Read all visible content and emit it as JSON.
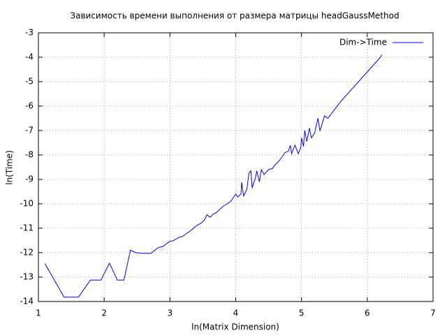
{
  "chart_data": {
    "type": "line",
    "title": "Зависимость времени выполнения от размера матрицы headGaussMethod",
    "x_label": "ln(Matrix Dimension)",
    "y_label": "ln(Time)",
    "legend_position": "top-right",
    "grid": true,
    "xlim": [
      1,
      7
    ],
    "xticks": [
      1,
      2,
      3,
      4,
      5,
      6,
      7
    ],
    "ylim": [
      -14,
      -3
    ],
    "yticks": [
      -14,
      -13,
      -12,
      -11,
      -10,
      -9,
      -8,
      -7,
      -6,
      -5,
      -4,
      -3
    ],
    "x": [
      1.1,
      1.39,
      1.61,
      1.79,
      1.95,
      2.08,
      2.2,
      2.3,
      2.4,
      2.48,
      2.56,
      2.64,
      2.71,
      2.77,
      2.83,
      2.89,
      2.94,
      3.0,
      3.04,
      3.09,
      3.14,
      3.18,
      3.26,
      3.33,
      3.4,
      3.47,
      3.53,
      3.56,
      3.61,
      3.66,
      3.71,
      3.76,
      3.81,
      3.87,
      3.93,
      4.0,
      4.03,
      4.08,
      4.09,
      4.12,
      4.17,
      4.2,
      4.23,
      4.25,
      4.3,
      4.32,
      4.36,
      4.39,
      4.43,
      4.5,
      4.56,
      4.6,
      4.64,
      4.7,
      4.75,
      4.8,
      4.83,
      4.85,
      4.9,
      4.95,
      4.99,
      5.0,
      5.03,
      5.05,
      5.08,
      5.12,
      5.15,
      5.2,
      5.25,
      5.28,
      5.3,
      5.35,
      5.4,
      5.5,
      5.6,
      5.7,
      5.8,
      5.9,
      6.0,
      6.1,
      6.2,
      6.22
    ],
    "series": [
      {
        "name": "Dim->Time",
        "color": "#0000ff",
        "values": [
          -12.45,
          -13.82,
          -13.82,
          -13.12,
          -13.12,
          -12.43,
          -13.12,
          -13.12,
          -11.9,
          -12.0,
          -12.03,
          -12.03,
          -12.03,
          -11.9,
          -11.78,
          -11.75,
          -11.65,
          -11.53,
          -11.52,
          -11.45,
          -11.37,
          -11.35,
          -11.2,
          -11.07,
          -10.9,
          -10.8,
          -10.65,
          -10.45,
          -10.55,
          -10.42,
          -10.35,
          -10.22,
          -10.1,
          -10.0,
          -9.88,
          -9.6,
          -9.72,
          -9.6,
          -9.12,
          -9.68,
          -9.4,
          -8.75,
          -8.65,
          -9.35,
          -8.95,
          -8.65,
          -9.1,
          -8.6,
          -8.8,
          -8.6,
          -8.55,
          -8.4,
          -8.3,
          -8.1,
          -7.9,
          -7.85,
          -7.6,
          -7.95,
          -7.6,
          -7.95,
          -7.7,
          -7.3,
          -7.65,
          -7.0,
          -7.45,
          -6.9,
          -7.3,
          -7.1,
          -6.5,
          -7.0,
          -6.85,
          -6.4,
          -6.5,
          -6.15,
          -5.8,
          -5.5,
          -5.2,
          -4.9,
          -4.6,
          -4.3,
          -4.0,
          -3.9
        ]
      }
    ]
  }
}
